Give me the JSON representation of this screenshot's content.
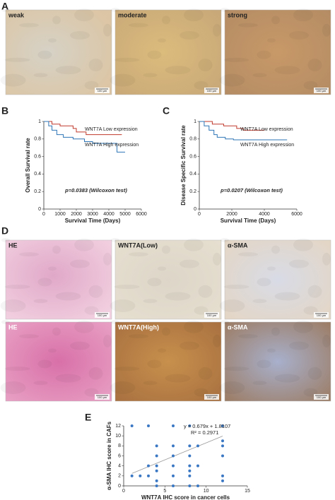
{
  "panel_labels": [
    "A",
    "B",
    "C",
    "D",
    "E"
  ],
  "panel_a": {
    "labels": [
      "weak",
      "moderate",
      "strong"
    ],
    "scale_bar": "100 µm"
  },
  "panel_d": {
    "labels": [
      "HE",
      "WNT7A(Low)",
      "α-SMA",
      "HE",
      "WNT7A(High)",
      "α-SMA"
    ],
    "scale_bar": "100 µm"
  },
  "chart_data": [
    {
      "type": "line",
      "x_label": "Survival Time (Days)",
      "y_label": "Overall Survival rate",
      "annotation": "p=0.0383 (Wilcoxon test)",
      "xlim": [
        0,
        6000
      ],
      "xticks": [
        0,
        1000,
        2000,
        3000,
        4000,
        5000,
        6000
      ],
      "ylim": [
        0,
        1
      ],
      "yticks": [
        0,
        0.2,
        0.4,
        0.6,
        0.8,
        1
      ],
      "series": [
        {
          "name": "WNT7A Low expression",
          "color": "#c0392b",
          "x": [
            0,
            500,
            500,
            1000,
            1000,
            1800,
            1800,
            2000,
            2000,
            2600,
            2600,
            4800
          ],
          "values": [
            1,
            1,
            0.97,
            0.97,
            0.95,
            0.95,
            0.92,
            0.92,
            0.88,
            0.88,
            0.85,
            0.85
          ]
        },
        {
          "name": "WNT7A High expression",
          "color": "#2e75b6",
          "x": [
            0,
            300,
            300,
            500,
            500,
            800,
            800,
            1200,
            1200,
            1800,
            1800,
            2500,
            2500,
            3000,
            3000,
            4500,
            4500,
            5000
          ],
          "values": [
            1,
            1,
            0.95,
            0.95,
            0.9,
            0.9,
            0.85,
            0.85,
            0.82,
            0.82,
            0.8,
            0.8,
            0.77,
            0.77,
            0.75,
            0.75,
            0.65,
            0.65
          ]
        }
      ]
    },
    {
      "type": "line",
      "x_label": "Survival Time (Days)",
      "y_label": "Disease Specific Survival rate",
      "annotation": "p=0.0207 (Wilcoxon test)",
      "xlim": [
        0,
        6000
      ],
      "xticks": [
        0,
        2000,
        4000,
        6000
      ],
      "ylim": [
        0,
        1
      ],
      "yticks": [
        0,
        0.2,
        0.4,
        0.6,
        0.8,
        1
      ],
      "series": [
        {
          "name": "WNT7A Low expression",
          "color": "#c0392b",
          "x": [
            0,
            800,
            800,
            1500,
            1500,
            2300,
            2300,
            2700,
            2700,
            4000
          ],
          "values": [
            1,
            1,
            0.97,
            0.97,
            0.95,
            0.95,
            0.92,
            0.92,
            0.9,
            0.9
          ]
        },
        {
          "name": "WNT7A High expression",
          "color": "#2e75b6",
          "x": [
            0,
            300,
            300,
            600,
            600,
            900,
            900,
            1100,
            1100,
            1600,
            1600,
            2100,
            2100,
            5400
          ],
          "values": [
            1,
            1,
            0.95,
            0.95,
            0.9,
            0.9,
            0.85,
            0.85,
            0.82,
            0.82,
            0.8,
            0.8,
            0.79,
            0.79
          ]
        }
      ]
    },
    {
      "type": "scatter",
      "x_label": "WNT7A IHC score in cancer cells",
      "y_label": "α-SMA IHC score in CAFs",
      "equation": "y = 0.679x + 1.8107",
      "r_squared": "R² = 0.2971",
      "trendline": {
        "slope": 0.679,
        "intercept": 1.8107
      },
      "xlim": [
        0,
        15
      ],
      "xticks": [
        0,
        5,
        10,
        15
      ],
      "ylim": [
        0,
        12
      ],
      "yticks": [
        0,
        2,
        4,
        6,
        8,
        10,
        12
      ],
      "color": "#3b78c4",
      "x": [
        1,
        1,
        2,
        3,
        3,
        3,
        4,
        4,
        4,
        4,
        4,
        4,
        6,
        6,
        6,
        6,
        6,
        6,
        8,
        8,
        8,
        8,
        8,
        8,
        8,
        9,
        9,
        9,
        12,
        12,
        12,
        12,
        12,
        12
      ],
      "values": [
        2,
        12,
        2,
        2,
        4,
        12,
        0,
        1,
        3,
        4,
        6,
        8,
        0,
        2,
        4,
        6,
        8,
        12,
        0,
        2,
        3,
        4,
        6,
        8,
        12,
        0,
        4,
        8,
        1,
        2,
        6,
        8,
        9,
        12
      ]
    }
  ]
}
